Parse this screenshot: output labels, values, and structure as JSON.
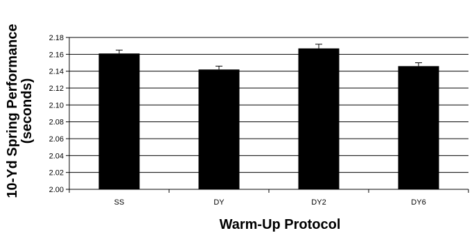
{
  "chart_data": {
    "type": "bar",
    "categories": [
      "SS",
      "DY",
      "DY2",
      "DY6"
    ],
    "values": [
      2.161,
      2.142,
      2.167,
      2.146
    ],
    "error": [
      0.004,
      0.004,
      0.005,
      0.004
    ],
    "xlabel": "Warm-Up Protocol",
    "ylabel_line1": "10-Yd Spring Performance",
    "ylabel_line2": "(seconds)",
    "ylim": [
      2.0,
      2.18
    ],
    "yticks": [
      "2.00",
      "2.02",
      "2.04",
      "2.06",
      "2.08",
      "2.10",
      "2.12",
      "2.14",
      "2.16",
      "2.18"
    ],
    "grid": true,
    "bar_color": "#000000",
    "grid_color": "#000000"
  }
}
